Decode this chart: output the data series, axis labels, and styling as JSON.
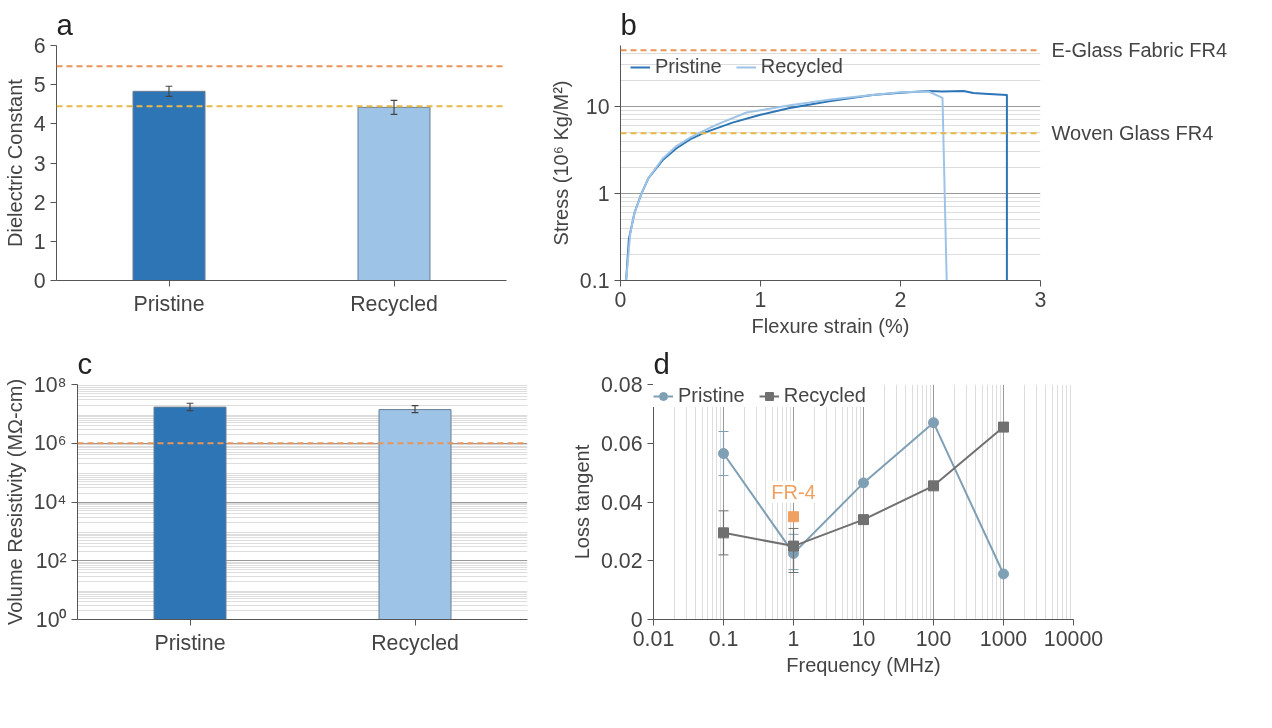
{
  "chart_data": [
    {
      "type": "bar",
      "title": "a",
      "ylabel": "Dielectric Constant",
      "categories": [
        "Pristine",
        "Recycled"
      ],
      "values": [
        4.83,
        4.42
      ],
      "colors": [
        "#2e75b6",
        "#9dc3e6"
      ],
      "errors": [
        0.13,
        0.18
      ],
      "ylim": [
        0,
        6
      ],
      "yticks": [
        0,
        1,
        2,
        3,
        4,
        5,
        6
      ],
      "grid": false,
      "legend": false,
      "ref_lines": [
        {
          "axis": "y",
          "value": 5.47,
          "color": "#e8955a",
          "line_style": "dashed"
        },
        {
          "axis": "y",
          "value": 4.45,
          "color": "#e8b84a",
          "line_style": "dashed"
        }
      ]
    },
    {
      "type": "line",
      "title": "b",
      "xlabel": "Flexure strain (%)",
      "ylabel": "Stress (10⁶ Kg/M²)",
      "log": "y",
      "xlim": [
        0,
        3
      ],
      "xticks": [
        0,
        1,
        2,
        3
      ],
      "ylim": [
        0.1,
        50
      ],
      "yticks": [
        0.1,
        1,
        10
      ],
      "grid": "y",
      "legend": "top left",
      "marker": "none",
      "line_style": "solid",
      "series": [
        {
          "name": "Pristine",
          "color": "#2e75b6",
          "x": [
            0.04,
            0.06,
            0.1,
            0.15,
            0.2,
            0.3,
            0.4,
            0.5,
            0.6,
            0.8,
            1.0,
            1.2,
            1.5,
            1.8,
            2.0,
            2.2,
            2.3,
            2.45,
            2.52,
            2.6,
            2.76,
            2.76
          ],
          "values": [
            0.1,
            0.3,
            0.6,
            1.0,
            1.5,
            2.4,
            3.3,
            4.2,
            5.0,
            6.5,
            8.0,
            9.5,
            11.5,
            13.5,
            14.3,
            15,
            14.8,
            15,
            14.2,
            14,
            13.5,
            0.1
          ]
        },
        {
          "name": "Recycled",
          "color": "#9dc3e6",
          "x": [
            0.04,
            0.07,
            0.1,
            0.15,
            0.2,
            0.3,
            0.4,
            0.5,
            0.6,
            0.7,
            0.9,
            1.0,
            1.2,
            1.5,
            1.8,
            2.0,
            2.2,
            2.3,
            2.33
          ],
          "values": [
            0.1,
            0.35,
            0.6,
            1.0,
            1.5,
            2.5,
            3.5,
            4.4,
            5.3,
            6.3,
            8.5,
            9.0,
            10.2,
            12,
            13.5,
            14.5,
            14.8,
            12.5,
            0.1
          ]
        }
      ],
      "ref_lines": [
        {
          "axis": "y",
          "value": 44,
          "label": "E-Glass Fabric FR4",
          "color": "#e8955a",
          "line_style": "dashed"
        },
        {
          "axis": "y",
          "value": 4.9,
          "label": "Woven Glass FR4",
          "color": "#e8b84a",
          "line_style": "dashed"
        }
      ]
    },
    {
      "type": "bar",
      "title": "c",
      "ylabel": "Volume Resistivity (MΩ-cm)",
      "log": "y",
      "categories": [
        "Pristine",
        "Recycled"
      ],
      "values": [
        17000000,
        14000000
      ],
      "colors": [
        "#2e75b6",
        "#9dc3e6"
      ],
      "errors": [
        [
          13000000,
          23000000
        ],
        [
          11000000,
          19000000
        ]
      ],
      "ylim": [
        1,
        100000000
      ],
      "yticks": [
        {
          "value": 1,
          "label": "10⁰"
        },
        {
          "value": 100,
          "label": "10²"
        },
        {
          "value": 10000,
          "label": "10⁴"
        },
        {
          "value": 1000000,
          "label": "10⁶"
        },
        {
          "value": 100000000,
          "label": "10⁸"
        }
      ],
      "grid": "y",
      "legend": false,
      "ref_lines": [
        {
          "axis": "y",
          "value": 1000000,
          "color": "#e8955a",
          "line_style": "dashed"
        }
      ]
    },
    {
      "type": "line",
      "title": "d",
      "xlabel": "Frequency (MHz)",
      "ylabel": "Loss tangent",
      "log": "x",
      "xlim": [
        0.01,
        10000
      ],
      "xticks": [
        0.01,
        0.1,
        1,
        10,
        100,
        1000,
        10000
      ],
      "ylim": [
        0,
        0.08
      ],
      "yticks": [
        0,
        0.02,
        0.04,
        0.06,
        0.08
      ],
      "grid": "x",
      "legend": "top",
      "line_style": "solid",
      "x": [
        0.1,
        1,
        10,
        100,
        1000
      ],
      "annotations": [
        {
          "text": "FR-4",
          "x": 1,
          "y": 0.035
        }
      ],
      "series": [
        {
          "name": "Pristine",
          "color": "#7f9fb5",
          "marker": "circle",
          "values": [
            0.0565,
            0.0225,
            0.0465,
            0.067,
            0.0155
          ],
          "errors": [
            [
              0.049,
              0.064
            ],
            [
              0.017,
              0.029
            ],
            null,
            null,
            null
          ]
        },
        {
          "name": "Recycled",
          "color": "#707070",
          "marker": "square",
          "values": [
            0.0295,
            0.025,
            0.034,
            0.0455,
            0.0655
          ],
          "errors": [
            [
              0.022,
              0.037
            ],
            [
              0.016,
              0.031
            ],
            null,
            null,
            null
          ]
        },
        {
          "type": "scatter",
          "color": "#f0a060",
          "marker": "square",
          "x": [
            1
          ],
          "values": [
            0.035
          ]
        }
      ]
    }
  ]
}
